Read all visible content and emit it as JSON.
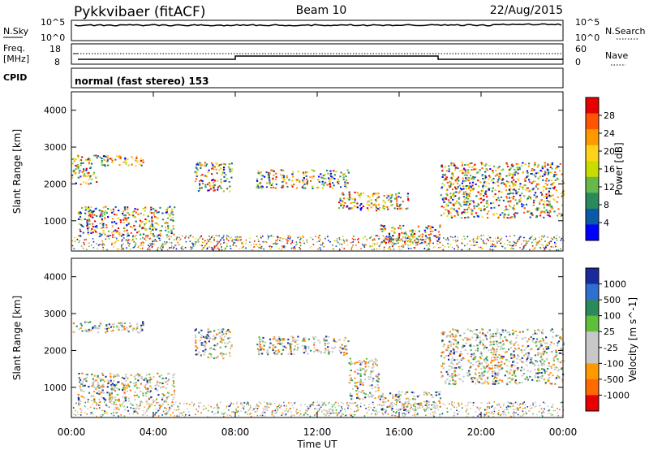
{
  "header": {
    "station": "Pykkvibaer (fitACF)",
    "beam": "Beam 10",
    "date": "22/Aug/2015"
  },
  "top_panels": {
    "nsky": {
      "label": "N.Sky",
      "left_ticks": [
        "10^5",
        "10^0"
      ],
      "right_label": "N.Search",
      "right_ticks": [
        "10^5",
        "10^0"
      ]
    },
    "freq": {
      "label_line1": "Freq.",
      "label_line2": "[MHz]",
      "left_ticks": [
        "18",
        "8"
      ],
      "right_label": "Nave",
      "right_ticks": [
        "60",
        "0"
      ]
    },
    "cpid": {
      "label": "CPID",
      "mode": "normal (fast stereo) 153"
    }
  },
  "chart_data": [
    {
      "type": "heatmap",
      "title": "",
      "ylabel": "Slant Range [km]",
      "yticks": [
        "4000",
        "3000",
        "2000",
        "1000"
      ],
      "ylim": [
        180,
        4500
      ],
      "colorbar_label": "Power [dB]",
      "colorbar_ticks": [
        "28",
        "24",
        "20",
        "16",
        "12",
        "8",
        "4"
      ],
      "colorbar_colors": [
        "#e60000",
        "#ff5500",
        "#ff9900",
        "#ffd21a",
        "#c8dc00",
        "#66b84a",
        "#2a8a5c",
        "#0a5aa8",
        "#0000ff"
      ],
      "echo_bands": [
        {
          "t_start": 0.0,
          "t_end": 3.5,
          "range_start": 2500,
          "range_end": 2800
        },
        {
          "t_start": 0.0,
          "t_end": 1.2,
          "range_start": 2000,
          "range_end": 2500
        },
        {
          "t_start": 0.3,
          "t_end": 5.0,
          "range_start": 600,
          "range_end": 1400
        },
        {
          "t_start": 6.0,
          "t_end": 7.8,
          "range_start": 1800,
          "range_end": 2600
        },
        {
          "t_start": 9.0,
          "t_end": 13.5,
          "range_start": 1900,
          "range_end": 2400
        },
        {
          "t_start": 13.0,
          "t_end": 16.5,
          "range_start": 1300,
          "range_end": 1800
        },
        {
          "t_start": 15.0,
          "t_end": 18.0,
          "range_start": 400,
          "range_end": 900
        },
        {
          "t_start": 18.0,
          "t_end": 24.0,
          "range_start": 1100,
          "range_end": 2600
        }
      ]
    },
    {
      "type": "heatmap",
      "title": "",
      "ylabel": "Slant Range [km]",
      "yticks": [
        "4000",
        "3000",
        "2000",
        "1000"
      ],
      "ylim": [
        180,
        4500
      ],
      "xlabel": "Time UT",
      "xticks": [
        "00:00",
        "04:00",
        "08:00",
        "12:00",
        "16:00",
        "20:00",
        "00:00"
      ],
      "xlim": [
        0,
        24
      ],
      "colorbar_label": "Velocity [m s^-1]",
      "colorbar_ticks": [
        "1000",
        "500",
        "100",
        "25",
        "-25",
        "-100",
        "-500",
        "-1000"
      ],
      "colorbar_colors": [
        "#1a2a9c",
        "#2f6fd0",
        "#2a8a5c",
        "#5fbf3a",
        "#c8c8c8",
        "#c8c8c8",
        "#ff9900",
        "#ff6a00",
        "#e60000"
      ],
      "echo_bands": [
        {
          "t_start": 0.0,
          "t_end": 3.5,
          "range_start": 2500,
          "range_end": 2800
        },
        {
          "t_start": 0.3,
          "t_end": 5.0,
          "range_start": 600,
          "range_end": 1400
        },
        {
          "t_start": 6.0,
          "t_end": 7.8,
          "range_start": 1800,
          "range_end": 2600
        },
        {
          "t_start": 9.0,
          "t_end": 13.5,
          "range_start": 1900,
          "range_end": 2400
        },
        {
          "t_start": 13.5,
          "t_end": 15.0,
          "range_start": 700,
          "range_end": 1800
        },
        {
          "t_start": 15.0,
          "t_end": 18.0,
          "range_start": 400,
          "range_end": 900
        },
        {
          "t_start": 18.0,
          "t_end": 24.0,
          "range_start": 1100,
          "range_end": 2600
        }
      ]
    }
  ]
}
